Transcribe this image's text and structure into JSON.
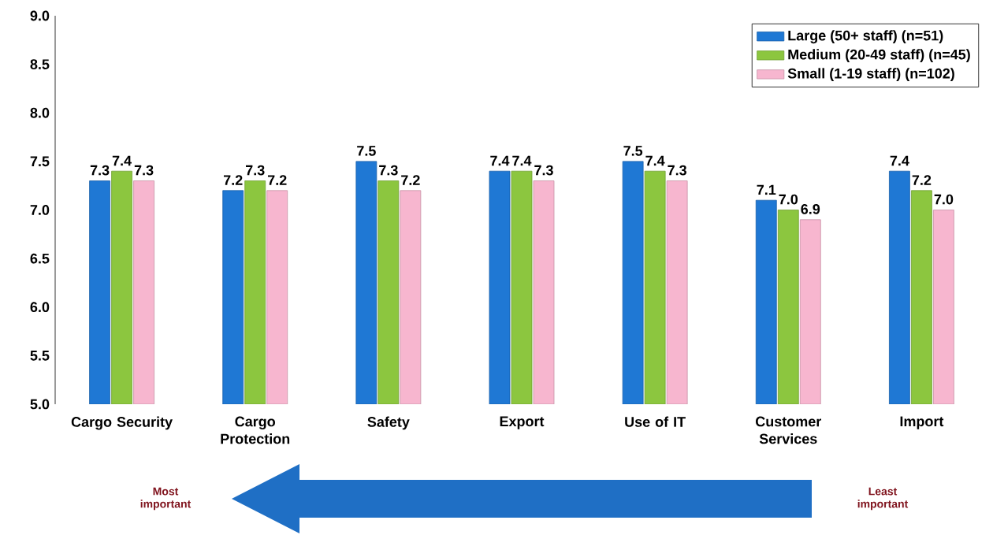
{
  "chart_data": {
    "type": "bar",
    "categories": [
      "Cargo Security",
      "Cargo Protection",
      "Safety",
      "Export",
      "Use of IT",
      "Customer Services",
      "Import"
    ],
    "series": [
      {
        "name": "Large (50+ staff) (n=51)",
        "color": "#1f78d4",
        "values": [
          7.3,
          7.2,
          7.5,
          7.4,
          7.5,
          7.1,
          7.4
        ],
        "value_labels": [
          "7.3",
          "7.2",
          "7.5",
          "7.4",
          "7.5",
          "7.1",
          "7.4"
        ]
      },
      {
        "name": "Medium (20-49 staff) (n=45)",
        "color": "#8cc63f",
        "values": [
          7.4,
          7.3,
          7.3,
          7.4,
          7.4,
          7.0,
          7.2
        ],
        "value_labels": [
          "7.4",
          "7.3",
          "7.3",
          "7.4",
          "7.4",
          "7.0",
          "7.2"
        ]
      },
      {
        "name": "Small (1-19 staff) (n=102)",
        "color": "#f7b6cf",
        "values": [
          7.3,
          7.2,
          7.2,
          7.3,
          7.3,
          6.9,
          7.0
        ],
        "value_labels": [
          "7.3",
          "7.2",
          "7.2",
          "7.3",
          "7.3",
          "6.9",
          "7.0"
        ]
      }
    ],
    "ylim": [
      5,
      9
    ],
    "yticks": [
      {
        "value": 5,
        "label": "5.0"
      },
      {
        "value": 5.5,
        "label": "5.5"
      },
      {
        "value": 6,
        "label": "6.0"
      },
      {
        "value": 6.5,
        "label": "6.5"
      },
      {
        "value": 7,
        "label": "7.0"
      },
      {
        "value": 7.5,
        "label": "7.5"
      },
      {
        "value": 8,
        "label": "8.0"
      },
      {
        "value": 8.5,
        "label": "8.5"
      },
      {
        "value": 9,
        "label": "9.0"
      }
    ],
    "legend": "top right",
    "annotations": [
      "Most important",
      "Least important"
    ]
  }
}
